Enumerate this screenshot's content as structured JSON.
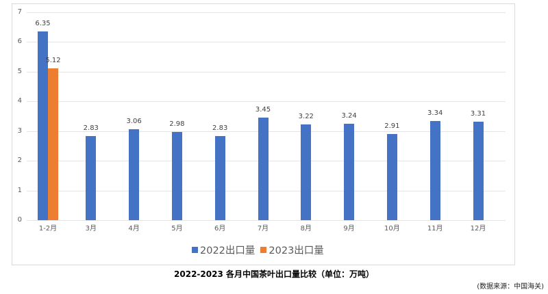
{
  "chart_data": {
    "type": "bar",
    "title": "2022-2023 各月中国茶叶出口量比较（单位：万吨）",
    "xlabel": "",
    "ylabel": "",
    "ylim": [
      0,
      7
    ],
    "yticks": [
      0,
      1,
      2,
      3,
      4,
      5,
      6,
      7
    ],
    "grid": true,
    "legend_position": "bottom",
    "categories": [
      "1-2月",
      "3月",
      "4月",
      "5月",
      "6月",
      "7月",
      "8月",
      "9月",
      "10月",
      "11月",
      "12月"
    ],
    "series": [
      {
        "name": "2022出口量",
        "color": "#4472C4",
        "values": [
          6.35,
          2.83,
          3.06,
          2.98,
          2.83,
          3.45,
          3.22,
          3.24,
          2.91,
          3.34,
          3.31
        ]
      },
      {
        "name": "2023出口量",
        "color": "#ED7D31",
        "values": [
          5.12,
          null,
          null,
          null,
          null,
          null,
          null,
          null,
          null,
          null,
          null
        ]
      }
    ],
    "source_note": "(数据来源：中国海关)"
  }
}
